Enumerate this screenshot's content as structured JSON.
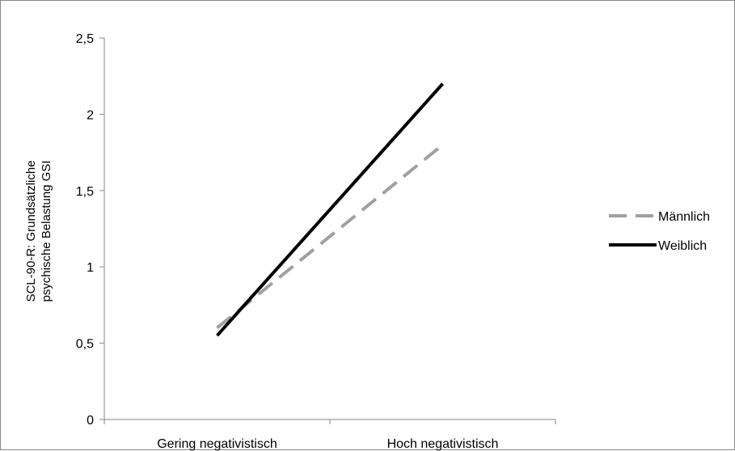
{
  "chart_data": {
    "type": "line",
    "categories": [
      "Gering negativistisch",
      "Hoch negativistisch"
    ],
    "series": [
      {
        "name": "Männlich",
        "values": [
          0.6,
          1.8
        ],
        "color": "#a0a0a0",
        "dash": "dashed"
      },
      {
        "name": "Weiblich",
        "values": [
          0.55,
          2.2
        ],
        "color": "#000000",
        "dash": "solid"
      }
    ],
    "ylabel_lines": [
      "SCL-90-R: Grundsätzliche",
      "psychische Belastung GSI"
    ],
    "xlabel": "",
    "ylim": [
      0,
      2.5
    ],
    "yticks": [
      0,
      0.5,
      1,
      1.5,
      2,
      2.5
    ],
    "ytick_labels": [
      "0",
      "0,5",
      "1",
      "1,5",
      "2",
      "2,5"
    ],
    "grid": false,
    "legend_position": "right"
  }
}
